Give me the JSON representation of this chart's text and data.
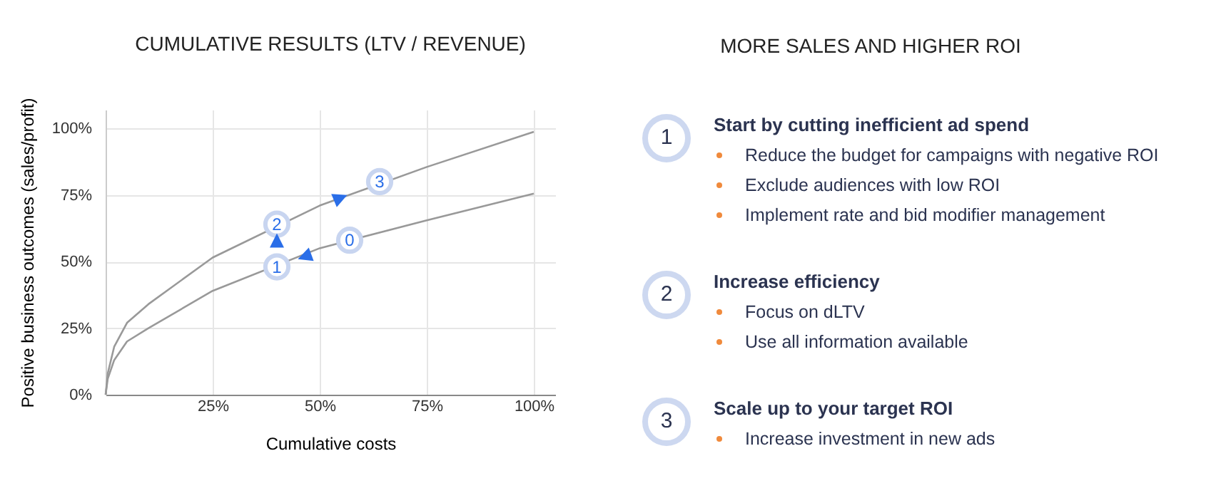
{
  "chart_data": [
    {
      "type": "line",
      "title": "CUMULATIVE RESULTS (LTV / REVENUE)",
      "xlabel": "Cumulative costs",
      "ylabel": "Positive business outcomes  (sales/profit)",
      "x": [
        0,
        0.5,
        2,
        5,
        10,
        25,
        50,
        75,
        100
      ],
      "series": [
        {
          "color": "#999999",
          "values": [
            0,
            8,
            18,
            27,
            34,
            51.5,
            71,
            85.5,
            98.7
          ]
        },
        {
          "color": "#999999",
          "values": [
            0,
            6,
            13,
            20,
            25,
            39,
            55,
            65.5,
            75.5
          ]
        }
      ],
      "xlim": [
        0,
        105
      ],
      "ylim": [
        0,
        107
      ],
      "xticks": [
        {
          "value": 25,
          "label": "25%"
        },
        {
          "value": 50,
          "label": "50%"
        },
        {
          "value": 75,
          "label": "75%"
        },
        {
          "value": 100,
          "label": "100%"
        }
      ],
      "yticks": [
        {
          "value": 0,
          "label": "0%"
        },
        {
          "value": 25,
          "label": "25%"
        },
        {
          "value": 50,
          "label": "50%"
        },
        {
          "value": 75,
          "label": "75%"
        },
        {
          "value": 100,
          "label": "100%"
        }
      ],
      "grid": true,
      "annotations": [
        {
          "text": "0",
          "x": 57,
          "y": 58
        },
        {
          "text": "1",
          "x": 40,
          "y": 48
        },
        {
          "text": "2",
          "x": 40,
          "y": 64
        },
        {
          "text": "3",
          "x": 64,
          "y": 80
        }
      ]
    },
    {
      "type": "other",
      "title": "MORE SALES AND HIGHER ROI",
      "annotations": [
        "1",
        "Start by cutting inefficient ad spend",
        "Reduce the budget for campaigns with negative ROI",
        "Exclude audiences with low ROI",
        "Implement rate and bid modifier management",
        "2",
        "Increase efficiency",
        "Focus on dLTV",
        "Use all  information available",
        "3",
        "Scale up to your target ROI",
        "Increase investment in new ads"
      ]
    }
  ]
}
